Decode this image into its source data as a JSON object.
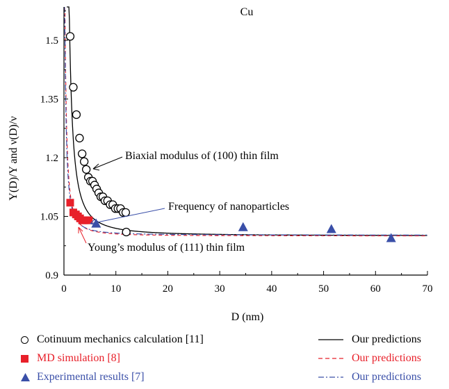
{
  "chart_data": {
    "type": "scatter",
    "title": "Cu",
    "xlabel": "D (nm)",
    "ylabel": "Y(D)/Y and ν(D)/ν",
    "xlim": [
      0,
      70
    ],
    "ylim": [
      0.9,
      1.62
    ],
    "xticks": [
      0,
      10,
      20,
      30,
      40,
      50,
      60,
      70
    ],
    "yticks": [
      0.9,
      1.05,
      1.2,
      1.35,
      1.5
    ],
    "ytick_labels": [
      "0.9",
      "1.05",
      "1.2",
      "1.35",
      "1.5"
    ],
    "colors": {
      "continuum": "#000000",
      "md": "#e8202a",
      "experiment": "#3a4fa8"
    },
    "series": [
      {
        "name": "Cotinuum mechanics calculation [11]",
        "marker": "open-circle",
        "x": [
          1.2,
          1.8,
          2.4,
          3.0,
          3.5,
          3.9,
          4.3,
          4.7,
          5.1,
          5.5,
          5.9,
          6.3,
          6.7,
          7.1,
          7.5,
          7.9,
          8.4,
          8.9,
          9.4,
          9.9,
          10.4,
          10.9,
          11.4,
          11.9,
          12.0
        ],
        "y": [
          1.51,
          1.38,
          1.31,
          1.25,
          1.21,
          1.19,
          1.17,
          1.15,
          1.14,
          1.14,
          1.13,
          1.12,
          1.11,
          1.1,
          1.1,
          1.09,
          1.09,
          1.08,
          1.08,
          1.07,
          1.07,
          1.07,
          1.06,
          1.06,
          1.01
        ]
      },
      {
        "name": "MD simulation [8]",
        "marker": "filled-square",
        "x": [
          1.2,
          1.8,
          2.3,
          2.7,
          3.1,
          3.5,
          3.9,
          4.3,
          4.8
        ],
        "y": [
          1.085,
          1.06,
          1.055,
          1.05,
          1.045,
          1.04,
          1.04,
          1.04,
          1.04
        ]
      },
      {
        "name": "Experimental results [7]",
        "marker": "filled-triangle",
        "x": [
          6.2,
          34.5,
          51.5,
          63.0
        ],
        "y": [
          1.032,
          1.023,
          1.018,
          0.995
        ]
      },
      {
        "name": "Our predictions",
        "line": "solid"
      },
      {
        "name": "Our predictions",
        "line": "dashed"
      },
      {
        "name": "Our predictions",
        "line": "dash-dot"
      }
    ],
    "annotations": [
      {
        "text": "Biaxial modulus of (100) thin film",
        "color": "#000000"
      },
      {
        "text": "Frequency of nanoparticles",
        "color": "#3a4fa8"
      },
      {
        "text": "Young’s modulus of (111) thin film",
        "color": "#e8202a"
      }
    ]
  }
}
